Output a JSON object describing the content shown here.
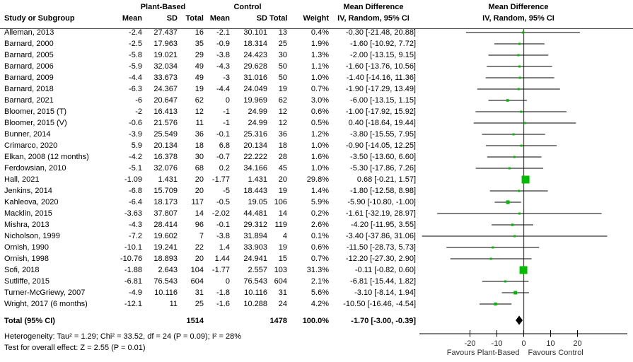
{
  "header": {
    "group1": "Plant-Based",
    "group2": "Control",
    "study_col": "Study or Subgroup",
    "mean": "Mean",
    "sd": "SD",
    "total": "Total",
    "weight": "Weight",
    "md_title": "Mean Difference",
    "md_subtitle": "IV, Random, 95% CI"
  },
  "footer": {
    "total_label": "Total (95% CI)",
    "total_pb": "1514",
    "total_c": "1478",
    "total_weight": "100.0%",
    "total_ci": "-1.70 [-3.00, -0.39]",
    "heterogeneity": "Heterogeneity: Tau² = 1.29; Chi² = 33.52, df = 24 (P = 0.09); I² = 28%",
    "overall_effect": "Test for overall effect: Z = 2.55 (P = 0.01)"
  },
  "colors": {
    "marker_green": "#00bb00",
    "diamond_black": "#000000",
    "line_black": "#000000",
    "zero_line_gray": "#4d4d4d"
  },
  "chart_data": {
    "type": "forest",
    "title": "Mean Difference",
    "model": "IV, Random, 95% CI",
    "x_ticks": [
      -20,
      -10,
      0,
      10,
      20
    ],
    "x_range": [
      -39,
      39
    ],
    "favours_left": "Favours Plant-Based",
    "favours_right": "Favours Control",
    "studies": [
      {
        "name": "Alleman, 2013",
        "pb_mean": "-2.4",
        "pb_sd": "27.437",
        "pb_total": "16",
        "c_mean": "-2.1",
        "c_sd": "30.101",
        "c_total": "13",
        "weight": "0.4%",
        "w": 0.4,
        "md": -0.3,
        "lo": -21.48,
        "hi": 20.88,
        "ci_label": "-0.30 [-21.48, 20.88]"
      },
      {
        "name": "Barnard, 2000",
        "pb_mean": "-2.5",
        "pb_sd": "17.963",
        "pb_total": "35",
        "c_mean": "-0.9",
        "c_sd": "18.314",
        "c_total": "25",
        "weight": "1.9%",
        "w": 1.9,
        "md": -1.6,
        "lo": -10.92,
        "hi": 7.72,
        "ci_label": "-1.60 [-10.92, 7.72]"
      },
      {
        "name": "Barnard, 2005",
        "pb_mean": "-5.8",
        "pb_sd": "19.021",
        "pb_total": "29",
        "c_mean": "-3.8",
        "c_sd": "24.423",
        "c_total": "30",
        "weight": "1.3%",
        "w": 1.3,
        "md": -2.0,
        "lo": -13.15,
        "hi": 9.15,
        "ci_label": "-2.00 [-13.15, 9.15]"
      },
      {
        "name": "Barnard, 2006",
        "pb_mean": "-5.9",
        "pb_sd": "32.034",
        "pb_total": "49",
        "c_mean": "-4.3",
        "c_sd": "29.628",
        "c_total": "50",
        "weight": "1.1%",
        "w": 1.1,
        "md": -1.6,
        "lo": -13.76,
        "hi": 10.56,
        "ci_label": "-1.60 [-13.76, 10.56]"
      },
      {
        "name": "Barnard, 2009",
        "pb_mean": "-4.4",
        "pb_sd": "33.673",
        "pb_total": "49",
        "c_mean": "-3",
        "c_sd": "31.016",
        "c_total": "50",
        "weight": "1.0%",
        "w": 1.0,
        "md": -1.4,
        "lo": -14.16,
        "hi": 11.36,
        "ci_label": "-1.40 [-14.16, 11.36]"
      },
      {
        "name": "Barnard, 2018",
        "pb_mean": "-6.3",
        "pb_sd": "24.367",
        "pb_total": "19",
        "c_mean": "-4.4",
        "c_sd": "24.049",
        "c_total": "19",
        "weight": "0.7%",
        "w": 0.7,
        "md": -1.9,
        "lo": -17.29,
        "hi": 13.49,
        "ci_label": "-1.90 [-17.29, 13.49]"
      },
      {
        "name": "Barnard, 2021",
        "pb_mean": "-6",
        "pb_sd": "20.647",
        "pb_total": "62",
        "c_mean": "0",
        "c_sd": "19.969",
        "c_total": "62",
        "weight": "3.0%",
        "w": 3.0,
        "md": -6.0,
        "lo": -13.15,
        "hi": 1.15,
        "ci_label": "-6.00 [-13.15, 1.15]"
      },
      {
        "name": "Bloomer, 2015 (T)",
        "pb_mean": "-2",
        "pb_sd": "16.413",
        "pb_total": "12",
        "c_mean": "-1",
        "c_sd": "24.99",
        "c_total": "12",
        "weight": "0.6%",
        "w": 0.6,
        "md": -1.0,
        "lo": -17.92,
        "hi": 15.92,
        "ci_label": "-1.00 [-17.92, 15.92]"
      },
      {
        "name": "Bloomer, 2015 (V)",
        "pb_mean": "-0.6",
        "pb_sd": "21.576",
        "pb_total": "11",
        "c_mean": "-1",
        "c_sd": "24.99",
        "c_total": "12",
        "weight": "0.5%",
        "w": 0.5,
        "md": 0.4,
        "lo": -18.64,
        "hi": 19.44,
        "ci_label": "0.40 [-18.64, 19.44]"
      },
      {
        "name": "Bunner, 2014",
        "pb_mean": "-3.9",
        "pb_sd": "25.549",
        "pb_total": "36",
        "c_mean": "-0.1",
        "c_sd": "25.316",
        "c_total": "36",
        "weight": "1.2%",
        "w": 1.2,
        "md": -3.8,
        "lo": -15.55,
        "hi": 7.95,
        "ci_label": "-3.80 [-15.55, 7.95]"
      },
      {
        "name": "Crimarco, 2020",
        "pb_mean": "5.9",
        "pb_sd": "20.134",
        "pb_total": "18",
        "c_mean": "6.8",
        "c_sd": "20.134",
        "c_total": "18",
        "weight": "1.0%",
        "w": 1.0,
        "md": -0.9,
        "lo": -14.05,
        "hi": 12.25,
        "ci_label": "-0.90 [-14.05, 12.25]"
      },
      {
        "name": "Elkan, 2008 (12 months)",
        "pb_mean": "-4.2",
        "pb_sd": "16.378",
        "pb_total": "30",
        "c_mean": "-0.7",
        "c_sd": "22.222",
        "c_total": "28",
        "weight": "1.6%",
        "w": 1.6,
        "md": -3.5,
        "lo": -13.6,
        "hi": 6.6,
        "ci_label": "-3.50 [-13.60, 6.60]"
      },
      {
        "name": "Ferdowsian, 2010",
        "pb_mean": "-5.1",
        "pb_sd": "32.076",
        "pb_total": "68",
        "c_mean": "0.2",
        "c_sd": "34.166",
        "c_total": "45",
        "weight": "1.0%",
        "w": 1.0,
        "md": -5.3,
        "lo": -17.86,
        "hi": 7.26,
        "ci_label": "-5.30 [-17.86, 7.26]"
      },
      {
        "name": "Hall, 2021",
        "pb_mean": "-1.09",
        "pb_sd": "1.431",
        "pb_total": "20",
        "c_mean": "-1.77",
        "c_sd": "1.431",
        "c_total": "20",
        "weight": "29.8%",
        "w": 29.8,
        "md": 0.68,
        "lo": -0.21,
        "hi": 1.57,
        "ci_label": "0.68 [-0.21, 1.57]"
      },
      {
        "name": "Jenkins, 2014",
        "pb_mean": "-6.8",
        "pb_sd": "15.709",
        "pb_total": "20",
        "c_mean": "-5",
        "c_sd": "18.443",
        "c_total": "19",
        "weight": "1.4%",
        "w": 1.4,
        "md": -1.8,
        "lo": -12.58,
        "hi": 8.98,
        "ci_label": "-1.80 [-12.58, 8.98]"
      },
      {
        "name": "Kahleova, 2020",
        "pb_mean": "-6.4",
        "pb_sd": "18.173",
        "pb_total": "117",
        "c_mean": "-0.5",
        "c_sd": "19.05",
        "c_total": "106",
        "weight": "5.9%",
        "w": 5.9,
        "md": -5.9,
        "lo": -10.8,
        "hi": -1.0,
        "ci_label": "-5.90 [-10.80, -1.00]"
      },
      {
        "name": "Macklin, 2015",
        "pb_mean": "-3.63",
        "pb_sd": "37.807",
        "pb_total": "14",
        "c_mean": "-2.02",
        "c_sd": "44.481",
        "c_total": "14",
        "weight": "0.2%",
        "w": 0.2,
        "md": -1.61,
        "lo": -32.19,
        "hi": 28.97,
        "ci_label": "-1.61 [-32.19, 28.97]"
      },
      {
        "name": "Mishra, 2013",
        "pb_mean": "-4.3",
        "pb_sd": "28.414",
        "pb_total": "96",
        "c_mean": "-0.1",
        "c_sd": "29.312",
        "c_total": "119",
        "weight": "2.6%",
        "w": 2.6,
        "md": -4.2,
        "lo": -11.95,
        "hi": 3.55,
        "ci_label": "-4.20 [-11.95, 3.55]"
      },
      {
        "name": "Nicholson, 1999",
        "pb_mean": "-7.2",
        "pb_sd": "19.602",
        "pb_total": "7",
        "c_mean": "-3.8",
        "c_sd": "31.894",
        "c_total": "4",
        "weight": "0.1%",
        "w": 0.1,
        "md": -3.4,
        "lo": -37.86,
        "hi": 31.06,
        "ci_label": "-3.40 [-37.86, 31.06]"
      },
      {
        "name": "Ornish, 1990",
        "pb_mean": "-10.1",
        "pb_sd": "19.241",
        "pb_total": "22",
        "c_mean": "1.4",
        "c_sd": "33.903",
        "c_total": "19",
        "weight": "0.6%",
        "w": 0.6,
        "md": -11.5,
        "lo": -28.73,
        "hi": 5.73,
        "ci_label": "-11.50 [-28.73, 5.73]"
      },
      {
        "name": "Ornish, 1998",
        "pb_mean": "-10.76",
        "pb_sd": "18.893",
        "pb_total": "20",
        "c_mean": "1.44",
        "c_sd": "24.941",
        "c_total": "15",
        "weight": "0.7%",
        "w": 0.7,
        "md": -12.2,
        "lo": -27.3,
        "hi": 2.9,
        "ci_label": "-12.20 [-27.30, 2.90]"
      },
      {
        "name": "Sofi, 2018",
        "pb_mean": "-1.88",
        "pb_sd": "2.643",
        "pb_total": "104",
        "c_mean": "-1.77",
        "c_sd": "2.557",
        "c_total": "103",
        "weight": "31.3%",
        "w": 31.3,
        "md": -0.11,
        "lo": -0.82,
        "hi": 0.6,
        "ci_label": "-0.11 [-0.82, 0.60]"
      },
      {
        "name": "Sutliffe, 2015",
        "pb_mean": "-6.81",
        "pb_sd": "76.543",
        "pb_total": "604",
        "c_mean": "0",
        "c_sd": "76.543",
        "c_total": "604",
        "weight": "2.1%",
        "w": 2.1,
        "md": -6.81,
        "lo": -15.44,
        "hi": 1.82,
        "ci_label": "-6.81 [-15.44, 1.82]"
      },
      {
        "name": "Turner-McGriewy, 2007",
        "pb_mean": "-4.9",
        "pb_sd": "10.116",
        "pb_total": "31",
        "c_mean": "-1.8",
        "c_sd": "10.116",
        "c_total": "31",
        "weight": "5.6%",
        "w": 5.6,
        "md": -3.1,
        "lo": -8.14,
        "hi": 1.94,
        "ci_label": "-3.10 [-8.14, 1.94]"
      },
      {
        "name": "Wright, 2017 (6 months)",
        "pb_mean": "-12.1",
        "pb_sd": "11",
        "pb_total": "25",
        "c_mean": "-1.6",
        "c_sd": "10.288",
        "c_total": "24",
        "weight": "4.2%",
        "w": 4.2,
        "md": -10.5,
        "lo": -16.46,
        "hi": -4.54,
        "ci_label": "-10.50 [-16.46, -4.54]"
      }
    ],
    "total": {
      "md": -1.7,
      "lo": -3.0,
      "hi": -0.39
    }
  }
}
